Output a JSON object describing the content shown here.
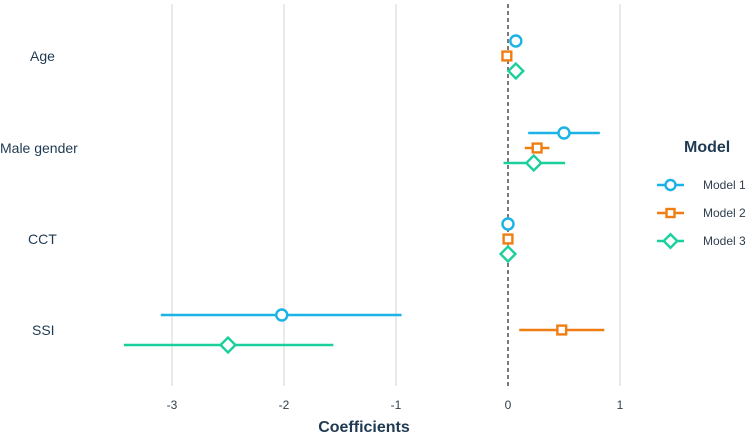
{
  "chart_data": {
    "type": "forest",
    "xlabel": "Coefficients",
    "ylabel": "",
    "xlim": [
      -3.4,
      1.2
    ],
    "xticks": [
      -3,
      -2,
      -1,
      0,
      1
    ],
    "xtick_labels": [
      "-3",
      "-2",
      "-1",
      "0",
      "1"
    ],
    "reference_line": 0,
    "grid": "vertical",
    "legend_position": "right",
    "legend_title": "Model",
    "categories": [
      "Age",
      "Male gender",
      "CCT",
      "SSI"
    ],
    "series": [
      {
        "name": "Model 1",
        "color": "#1bb3e6",
        "marker": "circle",
        "points": [
          {
            "category": "Age",
            "estimate": 0.07,
            "low": 0.07,
            "high": 0.07
          },
          {
            "category": "Male gender",
            "estimate": 0.5,
            "low": 0.18,
            "high": 0.82
          },
          {
            "category": "CCT",
            "estimate": 0.0,
            "low": 0.0,
            "high": 0.0
          },
          {
            "category": "SSI",
            "estimate": -2.02,
            "low": -3.1,
            "high": -0.95
          }
        ]
      },
      {
        "name": "Model 2",
        "color": "#f07d12",
        "marker": "square",
        "points": [
          {
            "category": "Age",
            "estimate": -0.01,
            "low": -0.01,
            "high": -0.01
          },
          {
            "category": "Male gender",
            "estimate": 0.26,
            "low": 0.15,
            "high": 0.37
          },
          {
            "category": "CCT",
            "estimate": 0.0,
            "low": 0.0,
            "high": 0.0
          },
          {
            "category": "SSI",
            "estimate": 0.48,
            "low": 0.1,
            "high": 0.86
          }
        ]
      },
      {
        "name": "Model 3",
        "color": "#19cf9c",
        "marker": "diamond",
        "points": [
          {
            "category": "Age",
            "estimate": 0.07,
            "low": 0.07,
            "high": 0.07
          },
          {
            "category": "Male gender",
            "estimate": 0.23,
            "low": -0.04,
            "high": 0.51
          },
          {
            "category": "CCT",
            "estimate": 0.0,
            "low": 0.0,
            "high": 0.0
          },
          {
            "category": "SSI",
            "estimate": -2.5,
            "low": -3.43,
            "high": -1.56
          }
        ]
      }
    ]
  }
}
